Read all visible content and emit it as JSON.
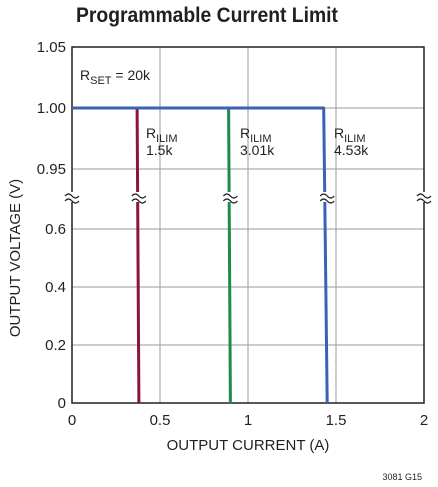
{
  "title": "Programmable Current Limit",
  "figure_id": "3081 G15",
  "annotation": {
    "prefix": "R",
    "subscript": "SET",
    "suffix": " = 20k"
  },
  "chart_data": {
    "type": "line",
    "title": "Programmable Current Limit",
    "xlabel": "OUTPUT CURRENT (A)",
    "ylabel": "OUTPUT VOLTAGE (V)",
    "xlim": [
      0,
      2
    ],
    "x_ticks": [
      "0",
      "0.5",
      "1",
      "1.5",
      "2"
    ],
    "y_axis_break": true,
    "y_upper_ticks": [
      "0.95",
      "1.00",
      "1.05"
    ],
    "y_lower_ticks": [
      "0",
      "0.2",
      "0.4",
      "0.6"
    ],
    "grid": true,
    "series": [
      {
        "name": "RILIM 1.5k",
        "label_prefix": "R",
        "label_sub": "ILIM",
        "label_value": "1.5k",
        "color": "#8b1538",
        "points": [
          [
            0,
            1.0
          ],
          [
            0.37,
            1.0
          ],
          [
            0.38,
            0
          ]
        ]
      },
      {
        "name": "RILIM 3.01k",
        "label_prefix": "R",
        "label_sub": "ILIM",
        "label_value": "3.01k",
        "color": "#1f8a4c",
        "points": [
          [
            0,
            1.0
          ],
          [
            0.89,
            1.0
          ],
          [
            0.9,
            0
          ]
        ]
      },
      {
        "name": "RILIM 4.53k",
        "label_prefix": "R",
        "label_sub": "ILIM",
        "label_value": "4.53k",
        "color": "#3a62b5",
        "points": [
          [
            0,
            1.0
          ],
          [
            1.43,
            1.0
          ],
          [
            1.45,
            0
          ]
        ]
      }
    ]
  }
}
